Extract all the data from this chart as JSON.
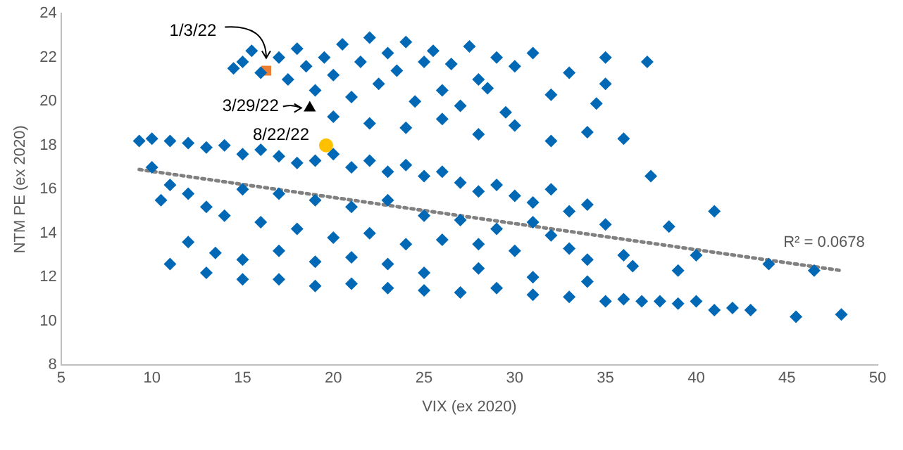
{
  "chart_data": {
    "type": "scatter",
    "xlabel": "VIX (ex 2020)",
    "ylabel": "NTM PE (ex 2020)",
    "xlim": [
      5,
      50
    ],
    "xticks": [
      5,
      10,
      15,
      20,
      25,
      30,
      35,
      40,
      45,
      50
    ],
    "ylim": [
      8,
      24
    ],
    "yticks": [
      8,
      10,
      12,
      14,
      16,
      18,
      20,
      22,
      24
    ],
    "grid": false,
    "legend": false,
    "marker": "diamond",
    "series": [
      {
        "color": "#0068b4",
        "x": [
          14.5,
          15,
          15.5,
          16,
          17,
          17.5,
          18,
          18.5,
          19,
          19.5,
          20,
          20.5,
          21,
          21.5,
          22,
          22.5,
          23,
          23.5,
          24,
          24.5,
          25,
          25.5,
          26,
          26.5,
          27,
          27.5,
          28,
          28.5,
          29,
          29.5,
          30,
          31,
          32,
          33,
          34,
          35,
          37.3,
          20,
          22,
          24,
          26,
          28,
          30,
          32,
          34.5,
          36,
          37.5,
          41,
          35,
          9.3,
          10,
          11,
          12,
          13,
          14,
          15,
          16,
          17,
          18,
          19,
          20,
          21,
          22,
          23,
          24,
          25,
          26,
          27,
          28,
          29,
          30,
          31,
          32,
          33,
          34,
          10,
          11,
          12,
          13,
          10.5,
          14,
          15,
          16,
          17,
          18,
          19,
          20,
          21,
          22,
          23,
          24,
          25,
          26,
          27,
          28,
          29,
          30,
          31,
          32,
          33,
          35,
          36,
          12,
          13.5,
          15,
          17,
          19,
          21,
          23,
          11,
          13,
          15,
          17,
          19,
          21,
          23,
          25,
          27,
          29,
          31,
          33,
          35,
          36,
          37,
          38,
          39,
          40,
          41,
          42,
          43,
          45.5,
          48,
          25,
          28,
          31,
          34,
          36.5,
          39,
          40,
          44,
          46.5,
          38.5,
          34
        ],
        "values": [
          21.5,
          21.8,
          22.3,
          21.3,
          22,
          21,
          22.4,
          21.6,
          20.5,
          22,
          21.2,
          22.6,
          20.2,
          21.8,
          22.9,
          20.8,
          22.2,
          21.4,
          22.7,
          20,
          21.8,
          22.3,
          20.5,
          21.7,
          19.8,
          22.5,
          21,
          20.6,
          22,
          19.5,
          21.6,
          22.2,
          20.3,
          21.3,
          18.6,
          22,
          21.8,
          19.3,
          19,
          18.8,
          19.2,
          18.5,
          18.9,
          18.2,
          19.9,
          18.3,
          16.6,
          15,
          20.8,
          18.2,
          18.3,
          18.2,
          18.1,
          17.9,
          18,
          17.6,
          17.8,
          17.5,
          17.2,
          17.3,
          17.6,
          17,
          17.3,
          16.8,
          17.1,
          16.6,
          16.8,
          16.3,
          15.9,
          16.2,
          15.7,
          15.4,
          16,
          15,
          15.3,
          17,
          16.2,
          15.8,
          15.2,
          15.5,
          14.8,
          16,
          14.5,
          15.8,
          14.2,
          15.5,
          13.8,
          15.2,
          14,
          15.5,
          13.5,
          14.8,
          13.7,
          14.6,
          13.5,
          14.2,
          13.2,
          14.5,
          13.9,
          13.3,
          14.4,
          13,
          13.6,
          13.1,
          12.8,
          13.2,
          12.7,
          12.9,
          12.6,
          12.6,
          12.2,
          11.9,
          11.9,
          11.6,
          11.7,
          11.5,
          11.4,
          11.3,
          11.5,
          11.2,
          11.1,
          10.9,
          11,
          10.9,
          10.9,
          10.8,
          10.9,
          10.5,
          10.6,
          10.5,
          10.2,
          10.3,
          12.2,
          12.4,
          12,
          11.8,
          12.5,
          12.3,
          13,
          12.6,
          12.3,
          14.3,
          12.8
        ]
      },
      {
        "type": "line",
        "color": "#808080",
        "line_style": "dotted",
        "marker": "none",
        "x": [
          9.3,
          48
        ],
        "values": [
          16.9,
          12.3
        ]
      },
      {
        "color": "#ed7d31",
        "marker": "square",
        "x": [
          16.3
        ],
        "values": [
          21.4
        ]
      },
      {
        "color": "#000000",
        "marker": "triangle",
        "x": [
          18.7
        ],
        "values": [
          19.7
        ]
      },
      {
        "color": "#ffc000",
        "marker": "circle",
        "x": [
          19.6
        ],
        "values": [
          18.0
        ]
      }
    ],
    "annotations": [
      {
        "text": "1/3/22",
        "x": 16.3,
        "y": 21.4
      },
      {
        "text": "3/29/22",
        "x": 18.7,
        "y": 19.7
      },
      {
        "text": "8/22/22",
        "x": 19.6,
        "y": 18.0
      },
      "R² = 0.0678"
    ]
  }
}
